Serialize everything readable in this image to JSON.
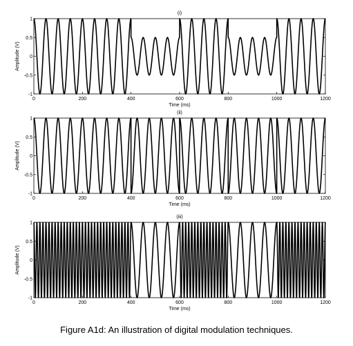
{
  "figure": {
    "caption": "Figure A1d: An illustration of digital modulation techniques."
  },
  "chart_data": [
    {
      "type": "line",
      "title": "(i)",
      "xlabel": "Time (ms)",
      "ylabel": "Amplitude (V)",
      "xlim": [
        0,
        1200
      ],
      "ylim": [
        -1,
        1
      ],
      "xticks": [
        "0",
        "200",
        "400",
        "600",
        "800",
        "1000",
        "1200"
      ],
      "yticks": [
        "1",
        "0.5",
        "0",
        "-0.5",
        "-1"
      ],
      "carrier_period_ms": 50,
      "modulation": "amplitude",
      "bits": [
        1,
        0,
        1,
        0,
        1
      ],
      "bit_boundaries_ms": [
        0,
        400,
        600,
        800,
        1000,
        1200
      ],
      "amplitudes_by_bit": {
        "1": 1,
        "0": 0.5
      }
    },
    {
      "type": "line",
      "title": "(ii)",
      "xlabel": "Time (ms)",
      "ylabel": "Amplitude (V)",
      "xlim": [
        0,
        1200
      ],
      "ylim": [
        -1,
        1
      ],
      "xticks": [
        "0",
        "200",
        "400",
        "600",
        "800",
        "1000",
        "1200"
      ],
      "yticks": [
        "1",
        "0.5",
        "0",
        "-0.5",
        "-1"
      ],
      "carrier_period_ms": 50,
      "modulation": "phase",
      "bits": [
        1,
        0,
        1,
        0,
        1
      ],
      "bit_boundaries_ms": [
        0,
        400,
        600,
        800,
        1000,
        1200
      ],
      "phases_by_bit_deg": {
        "1": 0,
        "0": 180
      }
    },
    {
      "type": "line",
      "title": "(iii)",
      "xlabel": "Time (ms)",
      "ylabel": "Amplitude (V)",
      "xlim": [
        0,
        1200
      ],
      "ylim": [
        -1,
        1
      ],
      "xticks": [
        "0",
        "200",
        "400",
        "600",
        "800",
        "1000",
        "1200"
      ],
      "yticks": [
        "1",
        "0.5",
        "0",
        "-0.5",
        "-1"
      ],
      "modulation": "frequency",
      "bits": [
        1,
        0,
        1,
        0,
        1
      ],
      "bit_boundaries_ms": [
        0,
        400,
        600,
        800,
        1000,
        1200
      ],
      "periods_by_bit_ms": {
        "1": 12.5,
        "0": 50
      }
    }
  ]
}
